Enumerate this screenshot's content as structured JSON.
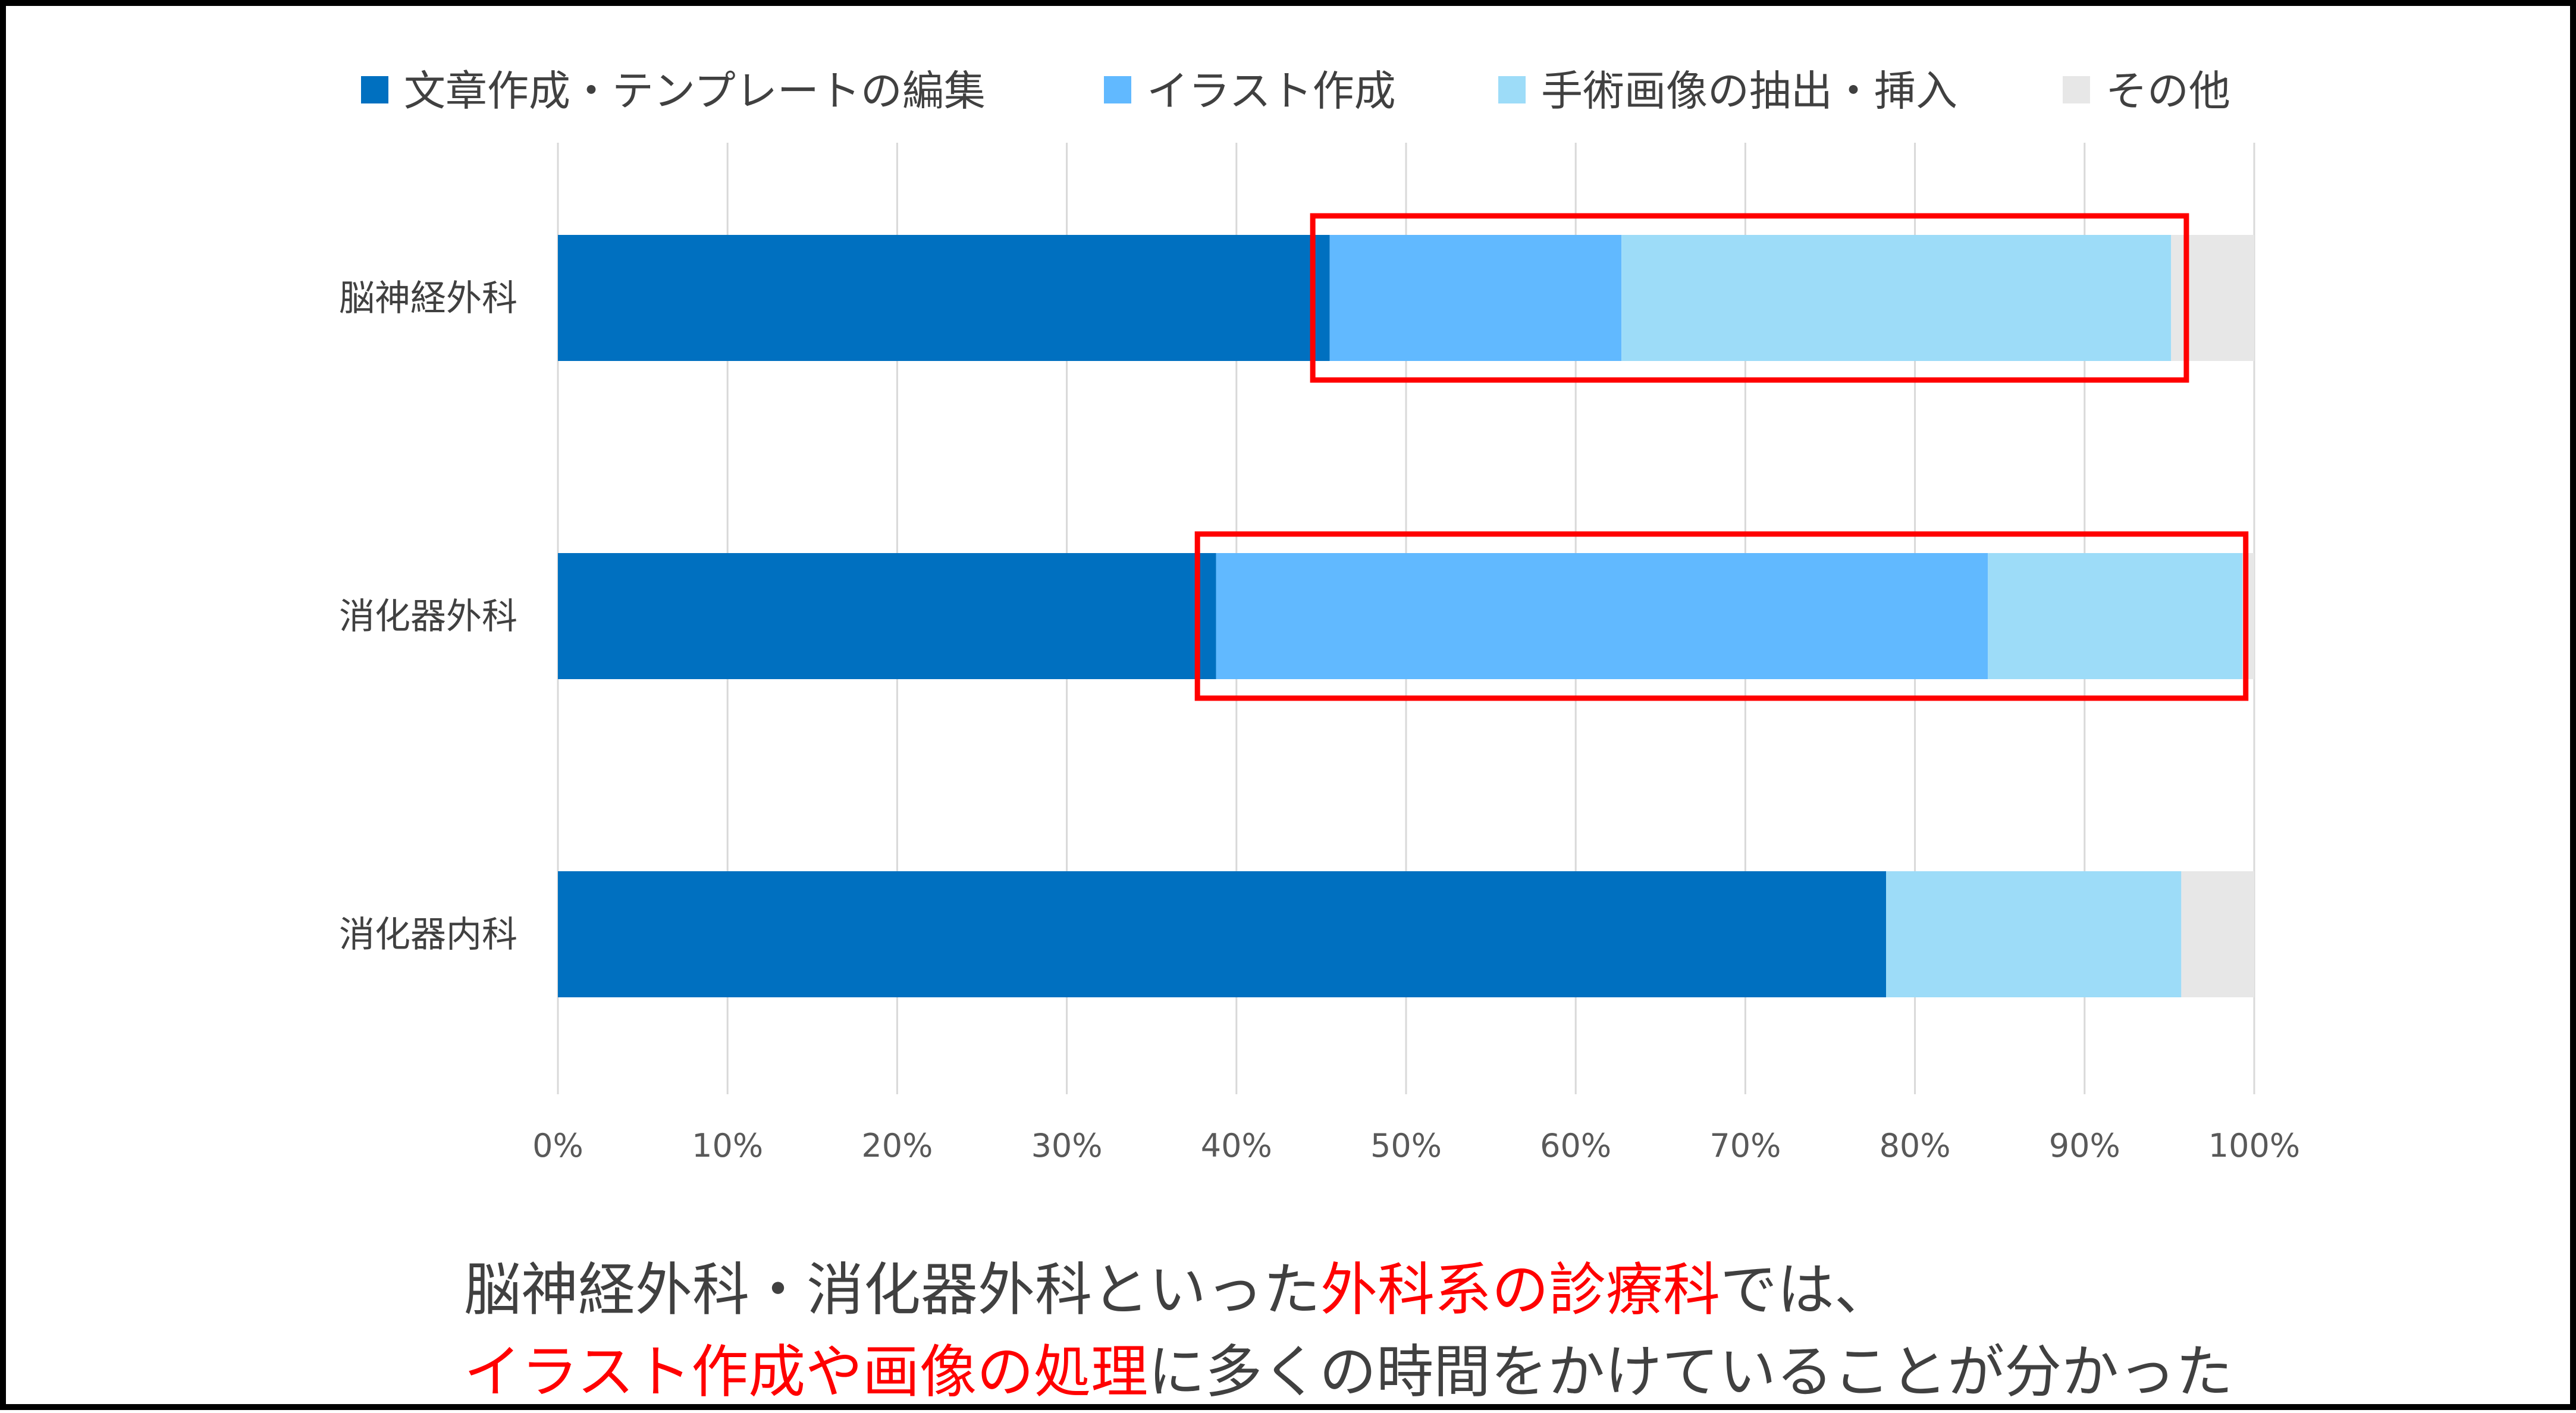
{
  "chart_data": {
    "type": "bar",
    "orientation": "horizontal",
    "stacked": "percent",
    "categories": [
      "脳神経外科",
      "消化器外科",
      "消化器内科"
    ],
    "series": [
      {
        "name": "文章作成・テンプレートの編集",
        "values": [
          45.5,
          38.8,
          78.3
        ],
        "color": "#0070c0"
      },
      {
        "name": "イラスト作成",
        "values": [
          17.2,
          45.5,
          0
        ],
        "color": "#61b9ff"
      },
      {
        "name": "手術画像の抽出・挿入",
        "values": [
          32.4,
          15.0,
          17.4
        ],
        "color": "#9ddcf8"
      },
      {
        "name": "その他",
        "values": [
          4.9,
          0.7,
          4.3
        ],
        "color": "#e7e7e7"
      }
    ],
    "xlim": [
      0,
      100
    ],
    "x_ticks": [
      "0%",
      "10%",
      "20%",
      "30%",
      "40%",
      "50%",
      "60%",
      "70%",
      "80%",
      "90%",
      "100%"
    ],
    "grid": true,
    "legend_position": "top",
    "highlight_color": "#ff0000",
    "highlights": [
      {
        "category": "脳神経外科",
        "from": 44.5,
        "to": 96.0
      },
      {
        "category": "消化器外科",
        "from": 37.7,
        "to": 99.5
      }
    ]
  },
  "caption": {
    "line1": [
      {
        "text": "脳神経外科・消化器外科といった",
        "highlight": false
      },
      {
        "text": "外科系の診療科",
        "highlight": true
      },
      {
        "text": "では、",
        "highlight": false
      }
    ],
    "line2": [
      {
        "text": "イラスト作成や画像の処理",
        "highlight": true
      },
      {
        "text": "に多くの時間をかけていることが分かった",
        "highlight": false
      }
    ]
  }
}
